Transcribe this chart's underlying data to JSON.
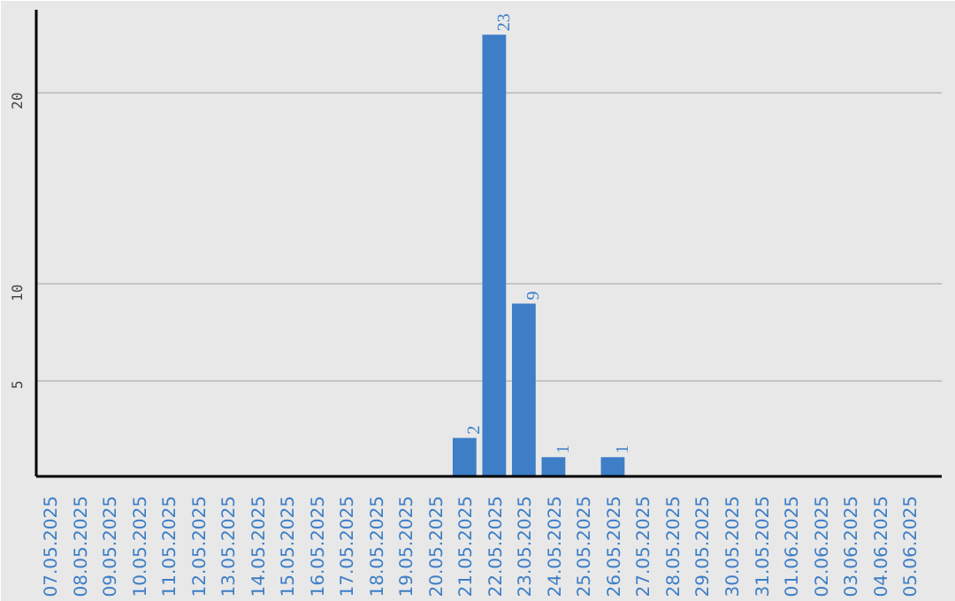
{
  "chart_data": {
    "type": "bar",
    "categories": [
      "07.05.2025",
      "08.05.2025",
      "09.05.2025",
      "10.05.2025",
      "11.05.2025",
      "12.05.2025",
      "13.05.2025",
      "14.05.2025",
      "15.05.2025",
      "16.05.2025",
      "17.05.2025",
      "18.05.2025",
      "19.05.2025",
      "20.05.2025",
      "21.05.2025",
      "22.05.2025",
      "23.05.2025",
      "24.05.2025",
      "25.05.2025",
      "26.05.2025",
      "27.05.2025",
      "28.05.2025",
      "29.05.2025",
      "30.05.2025",
      "31.05.2025",
      "01.06.2025",
      "02.06.2025",
      "03.06.2025",
      "04.06.2025",
      "05.06.2025"
    ],
    "values": [
      0,
      0,
      0,
      0,
      0,
      0,
      0,
      0,
      0,
      0,
      0,
      0,
      0,
      0,
      2,
      23,
      9,
      1,
      0,
      1,
      0,
      0,
      0,
      0,
      0,
      0,
      0,
      0,
      0,
      0
    ],
    "value_labels": [
      null,
      null,
      null,
      null,
      null,
      null,
      null,
      null,
      null,
      null,
      null,
      null,
      null,
      null,
      "2",
      "23",
      "9",
      "1",
      null,
      "1",
      null,
      null,
      null,
      null,
      null,
      null,
      null,
      null,
      null,
      null
    ],
    "color": "#3d7ec6",
    "ylim": [
      0,
      24.3
    ],
    "yticks": [
      5,
      10,
      20
    ],
    "grid": "y"
  }
}
